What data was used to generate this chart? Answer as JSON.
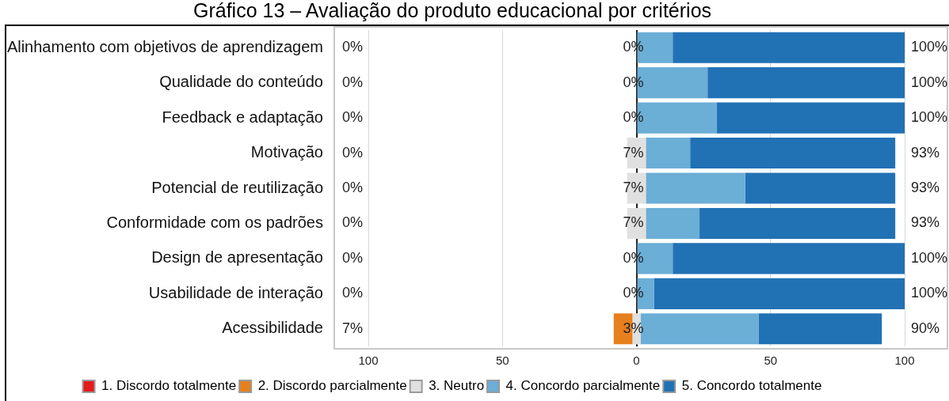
{
  "chart_data": {
    "type": "bar",
    "orientation": "horizontal",
    "title": "Gráfico 13 – Avaliação do produto educacional por critérios",
    "categories": [
      "Alinhamento com objetivos de aprendizagem",
      "Qualidade do conteúdo",
      "Feedback e adaptação",
      "Motivação",
      "Potencial de reutilização",
      "Conformidade com os padrões",
      "Design de apresentação",
      "Usabilidade de interação",
      "Acessibilidade"
    ],
    "series": [
      {
        "name": "1. Discordo totalmente",
        "color": "#e41a1c",
        "values": [
          0,
          0,
          0,
          0,
          0,
          0,
          0,
          0,
          0
        ],
        "base": [
          null,
          null,
          null,
          null,
          null,
          null,
          null,
          null,
          null
        ]
      },
      {
        "name": "2. Discordo parcialmente",
        "color": "#e6801f",
        "values": [
          0,
          0,
          0,
          0,
          0,
          0,
          0,
          0,
          7
        ],
        "base": [
          null,
          null,
          null,
          null,
          null,
          null,
          null,
          null,
          -8.5
        ]
      },
      {
        "name": "3. Neutro",
        "color": "#e0e0e0",
        "values": [
          0,
          0,
          0,
          7,
          7,
          7,
          0,
          0,
          3
        ],
        "base": [
          null,
          null,
          null,
          -3.5,
          -3.5,
          -3.5,
          null,
          null,
          -1.5
        ],
        "value_labels": [
          "0%",
          "0%",
          "0%",
          "7%",
          "7%",
          "7%",
          "0%",
          "0%",
          "3%"
        ]
      },
      {
        "name": "4. Concordo parcialmente",
        "color": "#6baed6",
        "values": [
          13.5,
          26.5,
          30,
          16.5,
          37,
          20,
          13.5,
          6.5,
          44
        ],
        "base": [
          0,
          0,
          0,
          3.5,
          3.5,
          3.5,
          0,
          0,
          1.5
        ]
      },
      {
        "name": "5. Concordo totalmente",
        "color": "#2171b5",
        "values": [
          86.5,
          73.5,
          70,
          76.5,
          56,
          73,
          86.5,
          93.5,
          46
        ],
        "base": [
          13.5,
          26.5,
          30,
          20,
          40.5,
          23.5,
          13.5,
          6.5,
          45.5
        ]
      }
    ],
    "annotations": [
      "0%",
      "0%",
      "0%",
      "0%",
      "0%",
      "0%",
      "0%",
      "0%",
      "7%",
      "100%",
      "100%",
      "100%",
      "93%",
      "93%",
      "93%",
      "100%",
      "100%",
      "90%"
    ],
    "xlim": [
      -100,
      100
    ],
    "xticks": [
      {
        "value": -100,
        "label": "100"
      },
      {
        "value": -50,
        "label": "50"
      },
      0,
      50,
      100
    ],
    "grid": "x",
    "legend": "bottom"
  }
}
